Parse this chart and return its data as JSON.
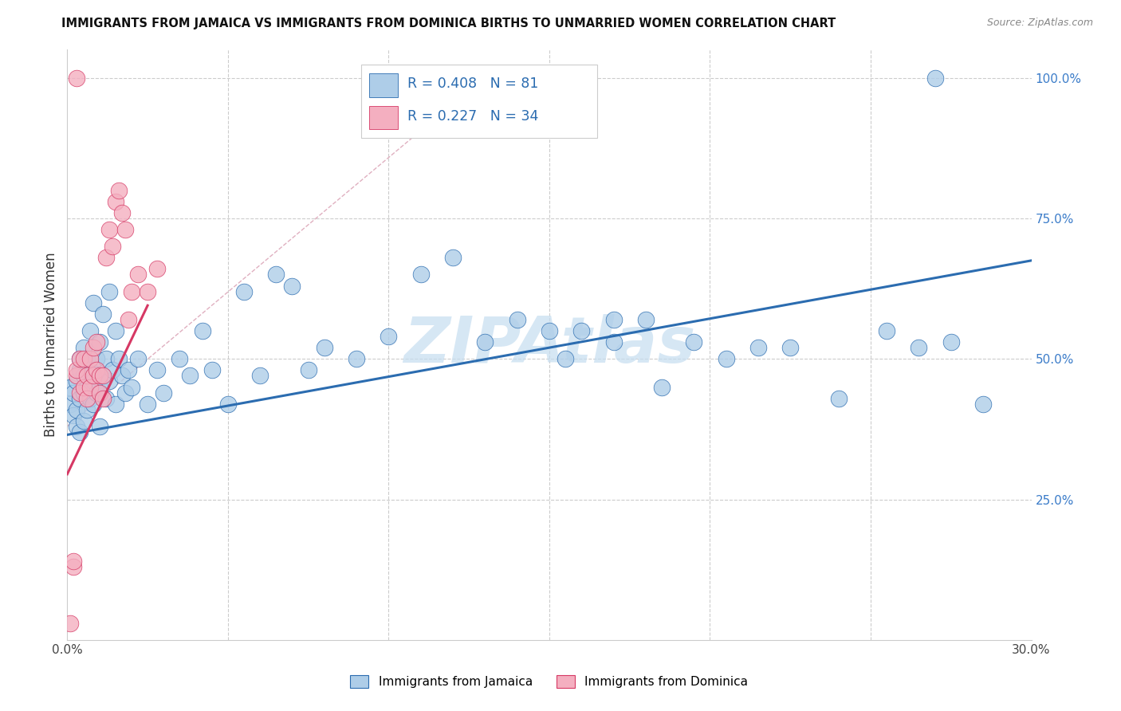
{
  "title": "IMMIGRANTS FROM JAMAICA VS IMMIGRANTS FROM DOMINICA BIRTHS TO UNMARRIED WOMEN CORRELATION CHART",
  "source": "Source: ZipAtlas.com",
  "ylabel": "Births to Unmarried Women",
  "xlim": [
    0.0,
    0.3
  ],
  "ylim": [
    0.0,
    1.05
  ],
  "jamaica_R": 0.408,
  "jamaica_N": 81,
  "dominica_R": 0.227,
  "dominica_N": 34,
  "jamaica_color": "#aecde8",
  "dominica_color": "#f4afc0",
  "trend_jamaica_color": "#2b6cb0",
  "trend_dominica_color": "#d63864",
  "ref_line_color": "#e0b0c0",
  "watermark_color": "#c5ddf0",
  "legend_jamaica": "Immigrants from Jamaica",
  "legend_dominica": "Immigrants from Dominica",
  "jamaica_scatter_x": [
    0.001,
    0.001,
    0.002,
    0.002,
    0.003,
    0.003,
    0.003,
    0.004,
    0.004,
    0.004,
    0.004,
    0.005,
    0.005,
    0.005,
    0.005,
    0.006,
    0.006,
    0.006,
    0.007,
    0.007,
    0.007,
    0.008,
    0.008,
    0.008,
    0.009,
    0.009,
    0.01,
    0.01,
    0.01,
    0.011,
    0.011,
    0.012,
    0.012,
    0.013,
    0.013,
    0.014,
    0.015,
    0.015,
    0.016,
    0.017,
    0.018,
    0.019,
    0.02,
    0.022,
    0.025,
    0.028,
    0.03,
    0.035,
    0.038,
    0.042,
    0.045,
    0.05,
    0.055,
    0.06,
    0.065,
    0.07,
    0.075,
    0.08,
    0.09,
    0.1,
    0.11,
    0.12,
    0.13,
    0.14,
    0.15,
    0.16,
    0.17,
    0.18,
    0.195,
    0.205,
    0.215,
    0.225,
    0.24,
    0.255,
    0.265,
    0.275,
    0.285,
    0.17,
    0.185,
    0.155,
    0.27
  ],
  "jamaica_scatter_y": [
    0.42,
    0.45,
    0.4,
    0.44,
    0.38,
    0.41,
    0.46,
    0.37,
    0.43,
    0.48,
    0.5,
    0.39,
    0.44,
    0.47,
    0.52,
    0.41,
    0.45,
    0.5,
    0.43,
    0.48,
    0.55,
    0.42,
    0.46,
    0.6,
    0.44,
    0.5,
    0.38,
    0.45,
    0.53,
    0.47,
    0.58,
    0.43,
    0.5,
    0.46,
    0.62,
    0.48,
    0.55,
    0.42,
    0.5,
    0.47,
    0.44,
    0.48,
    0.45,
    0.5,
    0.42,
    0.48,
    0.44,
    0.5,
    0.47,
    0.55,
    0.48,
    0.42,
    0.62,
    0.47,
    0.65,
    0.63,
    0.48,
    0.52,
    0.5,
    0.54,
    0.65,
    0.68,
    0.53,
    0.57,
    0.55,
    0.55,
    0.53,
    0.57,
    0.53,
    0.5,
    0.52,
    0.52,
    0.43,
    0.55,
    0.52,
    0.53,
    0.42,
    0.57,
    0.45,
    0.5,
    1.0
  ],
  "dominica_scatter_x": [
    0.001,
    0.002,
    0.002,
    0.003,
    0.003,
    0.004,
    0.004,
    0.005,
    0.005,
    0.006,
    0.006,
    0.007,
    0.007,
    0.008,
    0.008,
    0.009,
    0.009,
    0.01,
    0.01,
    0.011,
    0.011,
    0.012,
    0.013,
    0.014,
    0.015,
    0.016,
    0.017,
    0.018,
    0.019,
    0.02,
    0.022,
    0.025,
    0.028,
    0.003
  ],
  "dominica_scatter_y": [
    0.03,
    0.13,
    0.14,
    0.47,
    0.48,
    0.44,
    0.5,
    0.45,
    0.5,
    0.43,
    0.47,
    0.45,
    0.5,
    0.47,
    0.52,
    0.48,
    0.53,
    0.44,
    0.47,
    0.43,
    0.47,
    0.68,
    0.73,
    0.7,
    0.78,
    0.8,
    0.76,
    0.73,
    0.57,
    0.62,
    0.65,
    0.62,
    0.66,
    1.0
  ],
  "jamaica_trend_x0": 0.0,
  "jamaica_trend_y0": 0.365,
  "jamaica_trend_x1": 0.3,
  "jamaica_trend_y1": 0.675,
  "dominica_trend_x0": 0.0,
  "dominica_trend_y0": 0.295,
  "dominica_trend_x1": 0.025,
  "dominica_trend_y1": 0.595,
  "ref_line_x0": 0.0,
  "ref_line_y0": 0.38,
  "ref_line_x1": 0.115,
  "ref_line_y1": 0.93
}
